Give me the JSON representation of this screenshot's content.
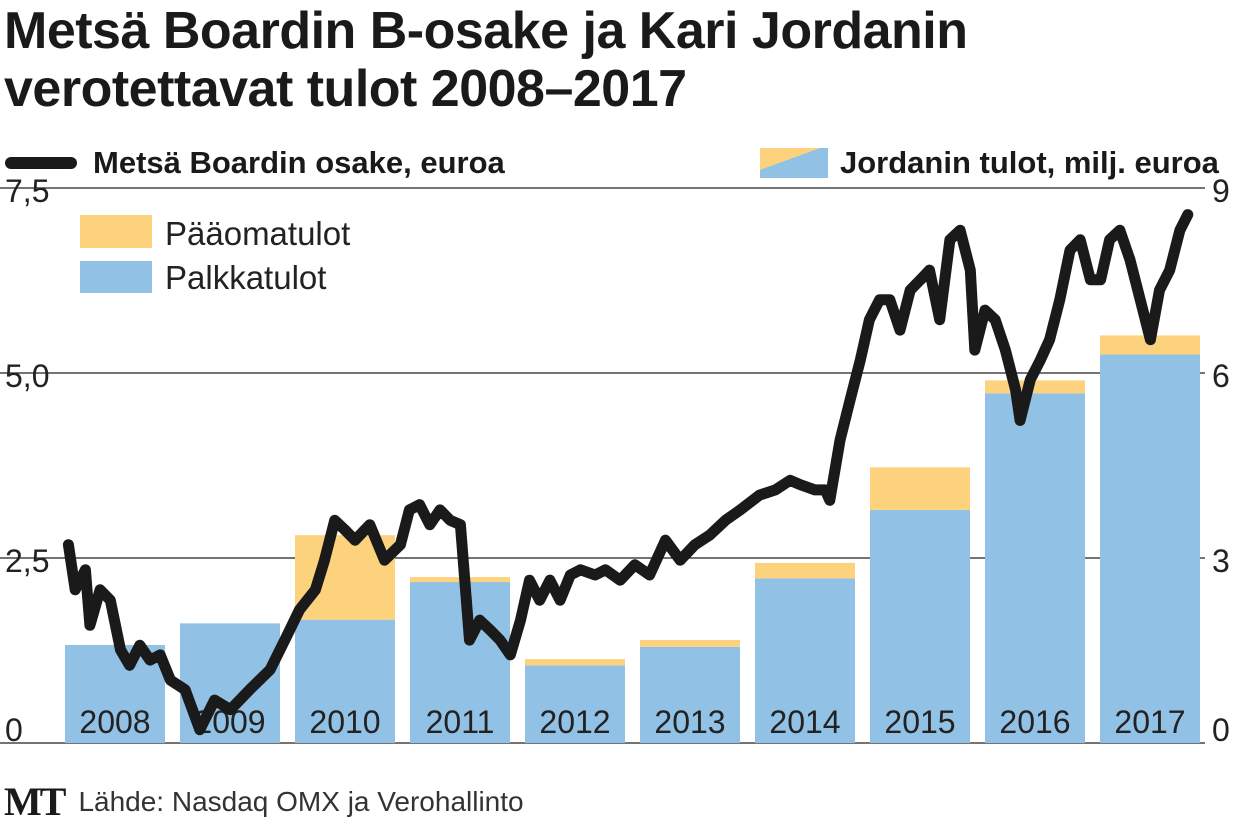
{
  "chart_data": {
    "type": "bar+line",
    "title": "Metsä Boardin B-osake ja Kari Jordanin verotettavat tulot 2008–2017",
    "title_lines": [
      "Metsä Boardin B-osake ja Kari Jordanin",
      "verotettavat tulot 2008–2017"
    ],
    "legend_line": "Metsä Boardin osake, euroa",
    "legend_bars": "Jordanin tulot, milj. euroa",
    "legend_inner": [
      "Pääomatulot",
      "Palkkatulot"
    ],
    "left_axis": {
      "label": "euroa",
      "ylim": [
        0,
        7.5
      ],
      "ticks": [
        "0",
        "2,5",
        "5,0",
        "7,5"
      ],
      "tick_values": [
        0,
        2.5,
        5,
        7.5
      ]
    },
    "right_axis": {
      "label": "milj. euroa",
      "ylim": [
        0,
        9
      ],
      "ticks": [
        "0",
        "3",
        "6",
        "9"
      ],
      "tick_values": [
        0,
        3,
        6,
        9
      ]
    },
    "categories": [
      "2008",
      "2009",
      "2010",
      "2011",
      "2012",
      "2013",
      "2014",
      "2015",
      "2016",
      "2017"
    ],
    "series": [
      {
        "name": "Palkkatulot",
        "axis": "right",
        "values": [
          1.59,
          1.94,
          2.0,
          2.61,
          1.26,
          1.56,
          2.67,
          3.78,
          5.67,
          6.3
        ]
      },
      {
        "name": "Pääomatulot",
        "axis": "right",
        "values": [
          0,
          0,
          1.37,
          0.08,
          0.1,
          0.11,
          0.25,
          0.69,
          0.21,
          0.31
        ]
      }
    ],
    "line": {
      "name": "Metsä Boardin osake, euroa",
      "axis": "left",
      "x": [
        2008.03,
        2008.09,
        2008.18,
        2008.22,
        2008.31,
        2008.4,
        2008.49,
        2008.57,
        2008.66,
        2008.75,
        2008.84,
        2008.93,
        2009.06,
        2009.19,
        2009.32,
        2009.46,
        2009.63,
        2009.81,
        2009.94,
        2010.07,
        2010.21,
        2010.29,
        2010.38,
        2010.47,
        2010.56,
        2010.69,
        2010.82,
        2010.96,
        2011.04,
        2011.13,
        2011.22,
        2011.31,
        2011.4,
        2011.49,
        2011.57,
        2011.66,
        2011.75,
        2011.84,
        2011.93,
        2012.02,
        2012.1,
        2012.19,
        2012.28,
        2012.37,
        2012.46,
        2012.55,
        2012.68,
        2012.77,
        2012.9,
        2013.03,
        2013.16,
        2013.3,
        2013.43,
        2013.56,
        2013.69,
        2013.83,
        2013.96,
        2014.13,
        2014.27,
        2014.4,
        2014.49,
        2014.62,
        2014.71,
        2014.75,
        2014.84,
        2014.93,
        2015.02,
        2015.1,
        2015.19,
        2015.28,
        2015.37,
        2015.46,
        2015.55,
        2015.63,
        2015.72,
        2015.81,
        2015.9,
        2015.99,
        2016.03,
        2016.12,
        2016.21,
        2016.3,
        2016.39,
        2016.43,
        2016.52,
        2016.61,
        2016.69,
        2016.78,
        2016.87,
        2016.96,
        2017.05,
        2017.14,
        2017.22,
        2017.31,
        2017.4,
        2017.49,
        2017.58,
        2017.66,
        2017.75,
        2017.84,
        2017.91
      ],
      "y": [
        2.68,
        2.07,
        2.34,
        1.59,
        2.07,
        1.93,
        1.26,
        1.05,
        1.32,
        1.12,
        1.19,
        0.85,
        0.72,
        0.18,
        0.58,
        0.45,
        0.72,
        0.99,
        1.39,
        1.8,
        2.07,
        2.47,
        3.01,
        2.88,
        2.74,
        2.95,
        2.47,
        2.68,
        3.15,
        3.22,
        2.95,
        3.15,
        3.01,
        2.95,
        1.39,
        1.66,
        1.53,
        1.39,
        1.19,
        1.66,
        2.2,
        1.93,
        2.2,
        1.93,
        2.27,
        2.34,
        2.27,
        2.34,
        2.2,
        2.41,
        2.27,
        2.74,
        2.47,
        2.68,
        2.81,
        3.01,
        3.15,
        3.35,
        3.42,
        3.55,
        3.49,
        3.42,
        3.42,
        3.28,
        4.09,
        4.64,
        5.18,
        5.72,
        5.99,
        5.99,
        5.58,
        6.12,
        6.26,
        6.39,
        5.72,
        6.8,
        6.93,
        6.39,
        5.31,
        5.85,
        5.72,
        5.31,
        4.77,
        4.36,
        4.91,
        5.18,
        5.45,
        5.99,
        6.66,
        6.8,
        6.26,
        6.26,
        6.8,
        6.93,
        6.53,
        5.99,
        5.45,
        6.12,
        6.39,
        6.93,
        7.14
      ]
    },
    "colors": {
      "palkka": "#92c1e6",
      "paaoma": "#fdd27d",
      "line": "#1a1a1a"
    },
    "source": "Lähde: Nasdaq OMX ja Verohallinto",
    "logo": "MT"
  }
}
